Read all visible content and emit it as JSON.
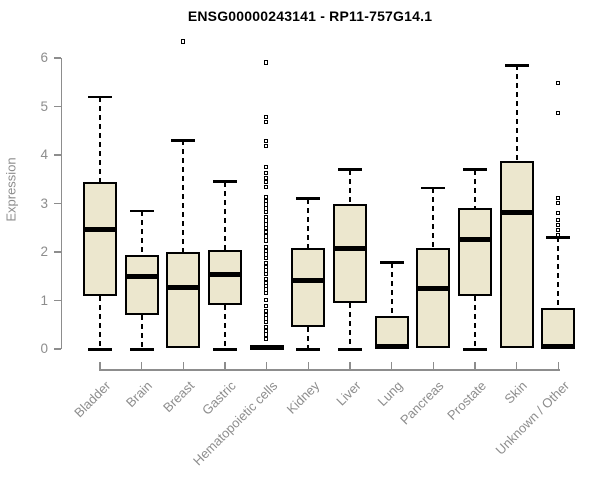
{
  "title": "ENSG00000243141 - RP11-757G14.1",
  "chart_data": {
    "type": "boxplot",
    "title": "ENSG00000243141 - RP11-757G14.1",
    "xlabel": "",
    "ylabel": "Expression",
    "ylim": [
      0,
      6
    ],
    "yticks": [
      "0",
      "1",
      "2",
      "3",
      "4",
      "5",
      "6"
    ],
    "grid": false,
    "legend": "none",
    "axis_color": "#8d8d8d",
    "box_fill": "#ece7ce",
    "box_stroke": "#000000",
    "categories": [
      "Bladder",
      "Brain",
      "Breast",
      "Gastric",
      "Hematopoietic cells",
      "Kidney",
      "Liver",
      "Lung",
      "Pancreas",
      "Prostate",
      "Skin",
      "Unknown / Other"
    ],
    "boxes": [
      {
        "category": "Bladder",
        "low": 0.02,
        "q1": 1.1,
        "median": 2.47,
        "q3": 3.45,
        "high": 5.2,
        "outliers": []
      },
      {
        "category": "Brain",
        "low": 0.02,
        "q1": 0.7,
        "median": 1.5,
        "q3": 1.93,
        "high": 2.85,
        "outliers": []
      },
      {
        "category": "Breast",
        "low": 0,
        "q1": 0.02,
        "median": 1.27,
        "q3": 2.0,
        "high": 4.3,
        "outliers": [
          6.33
        ]
      },
      {
        "category": "Gastric",
        "low": 0.02,
        "q1": 0.9,
        "median": 1.53,
        "q3": 2.05,
        "high": 3.45,
        "outliers": []
      },
      {
        "category": "Hematopoietic cells",
        "low": 0,
        "q1": 0,
        "median": 0.03,
        "q3": 0.08,
        "high": 0.1,
        "outliers": [
          5.9,
          4.78,
          4.68,
          4.28,
          4.18,
          3.75,
          3.62,
          3.52,
          3.43,
          3.33,
          3.13,
          3.05,
          2.97,
          2.89,
          2.81,
          2.72,
          2.64,
          2.56,
          2.48,
          2.4,
          2.31,
          2.23,
          2.1,
          2.02,
          1.94,
          1.86,
          1.77,
          1.69,
          1.61,
          1.53,
          1.44,
          1.36,
          1.28,
          1.22,
          1.15,
          1.01,
          0.87,
          0.78,
          0.7,
          0.62,
          0.54,
          0.45,
          0.37,
          0.29,
          0.19
        ]
      },
      {
        "category": "Kidney",
        "low": 0.02,
        "q1": 0.45,
        "median": 1.42,
        "q3": 2.08,
        "high": 3.1,
        "outliers": []
      },
      {
        "category": "Liver",
        "low": 0.02,
        "q1": 0.95,
        "median": 2.08,
        "q3": 3.0,
        "high": 3.7,
        "outliers": []
      },
      {
        "category": "Lung",
        "low": 0,
        "q1": 0.02,
        "median": 0.05,
        "q3": 0.68,
        "high": 1.78,
        "outliers": []
      },
      {
        "category": "Pancreas",
        "low": 0,
        "q1": 0.02,
        "median": 1.25,
        "q3": 2.08,
        "high": 3.32,
        "outliers": []
      },
      {
        "category": "Prostate",
        "low": 0.02,
        "q1": 1.1,
        "median": 2.25,
        "q3": 2.9,
        "high": 3.7,
        "outliers": []
      },
      {
        "category": "Skin",
        "low": 0,
        "q1": 0.02,
        "median": 2.82,
        "q3": 3.88,
        "high": 5.85,
        "outliers": []
      },
      {
        "category": "Unknown / Other",
        "low": 0,
        "q1": 0.02,
        "median": 0.05,
        "q3": 0.85,
        "high": 2.3,
        "outliers": [
          2.35,
          2.45,
          2.55,
          2.65,
          2.8,
          3.0,
          3.1,
          4.85,
          5.48
        ]
      }
    ]
  }
}
